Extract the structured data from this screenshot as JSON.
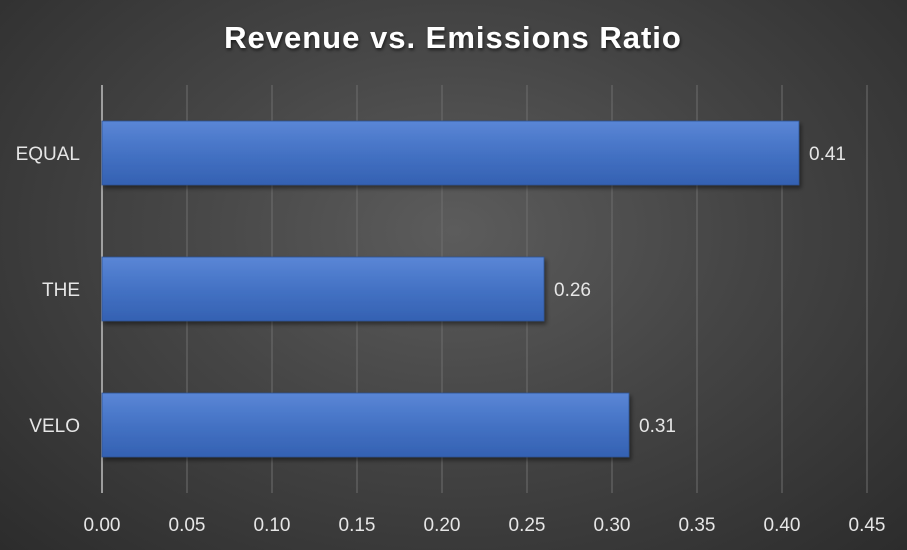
{
  "chart_data": {
    "type": "bar",
    "orientation": "horizontal",
    "title": "Revenue vs. Emissions Ratio",
    "xlabel": "",
    "ylabel": "",
    "categories": [
      "EQUAL",
      "THE",
      "VELO"
    ],
    "values": [
      0.41,
      0.26,
      0.31
    ],
    "data_labels": [
      "0.41",
      "0.26",
      "0.31"
    ],
    "xlim": [
      0,
      0.45
    ],
    "x_ticks": [
      0,
      0.05,
      0.1,
      0.15,
      0.2,
      0.25,
      0.3,
      0.35,
      0.4,
      0.45
    ],
    "x_tick_labels": [
      "0.00",
      "0.05",
      "0.10",
      "0.15",
      "0.20",
      "0.25",
      "0.30",
      "0.35",
      "0.40",
      "0.45"
    ],
    "grid": true,
    "legend": "none",
    "bar_color": "#4472C4",
    "background_color": "#3f3f3f",
    "text_color": "#ffffff"
  }
}
